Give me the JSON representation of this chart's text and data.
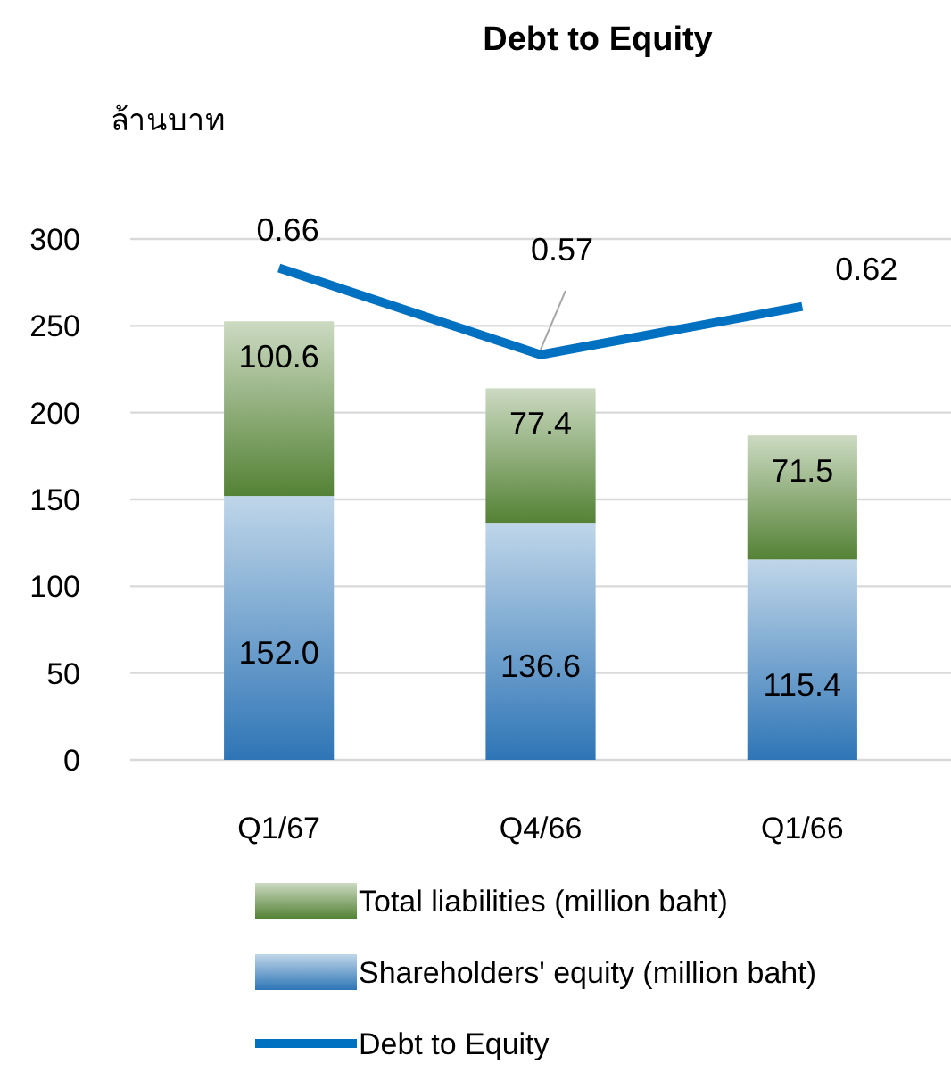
{
  "chart_data": {
    "type": "bar",
    "title": "Debt to Equity",
    "ylabel": "ล้านบาท",
    "categories": [
      "Q1/67",
      "Q4/66",
      "Q1/66"
    ],
    "stacked": true,
    "series": [
      {
        "name": "Shareholders' equity (million baht)",
        "color": "#2e75b6",
        "values": [
          152.0,
          136.6,
          115.4
        ],
        "value_labels": [
          "152.0",
          "136.6",
          "115.4"
        ]
      },
      {
        "name": "Total liabilities (million baht)",
        "color": "#548235",
        "values": [
          100.6,
          77.4,
          71.5
        ],
        "value_labels": [
          "100.6",
          "77.4",
          "71.5"
        ]
      },
      {
        "name": "Debt to Equity",
        "type": "line",
        "axis": "y2",
        "color": "#0070c0",
        "values": [
          0.66,
          0.57,
          0.62
        ],
        "value_labels": [
          "0.66",
          "0.57",
          "0.62"
        ]
      }
    ],
    "ylim": [
      0,
      300
    ],
    "yticks": [
      0,
      50,
      100,
      150,
      200,
      250,
      300
    ],
    "y2lim": [
      0.15,
      0.69
    ],
    "grid": "y",
    "legend": "bottom"
  }
}
